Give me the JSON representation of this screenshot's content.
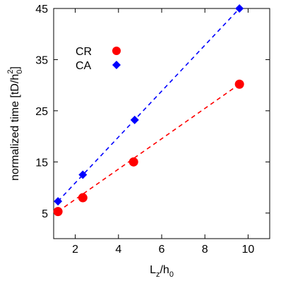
{
  "chart_data": {
    "type": "scatter",
    "xlabel": {
      "base": "L",
      "sub1": "z",
      "slash": "/h",
      "sub2": "0"
    },
    "ylabel": {
      "pre": "normalized time [tD/h",
      "sub": "0",
      "sup": "2",
      "post": "]"
    },
    "xlim": [
      1,
      11
    ],
    "ylim": [
      0,
      45
    ],
    "xticks": [
      2,
      4,
      6,
      8,
      10
    ],
    "yticks": [
      5,
      15,
      25,
      35,
      45
    ],
    "grid": false,
    "legend_position": "top-left",
    "series": [
      {
        "name": "CR",
        "marker": "circle",
        "color": "#ff0000",
        "x": [
          1.2,
          2.35,
          4.7,
          9.6
        ],
        "y": [
          5.3,
          8.0,
          15.0,
          30.2
        ],
        "fit_line": {
          "style": "dashed",
          "from": [
            1.2,
            5.3
          ],
          "to": [
            9.6,
            30.2
          ]
        }
      },
      {
        "name": "CA",
        "marker": "diamond",
        "color": "#0000ff",
        "x": [
          1.2,
          2.35,
          4.75,
          9.6
        ],
        "y": [
          7.3,
          12.5,
          23.2,
          45.0
        ],
        "fit_line": {
          "style": "dashed",
          "from": [
            1.2,
            7.3
          ],
          "to": [
            9.6,
            45.0
          ]
        }
      }
    ]
  }
}
